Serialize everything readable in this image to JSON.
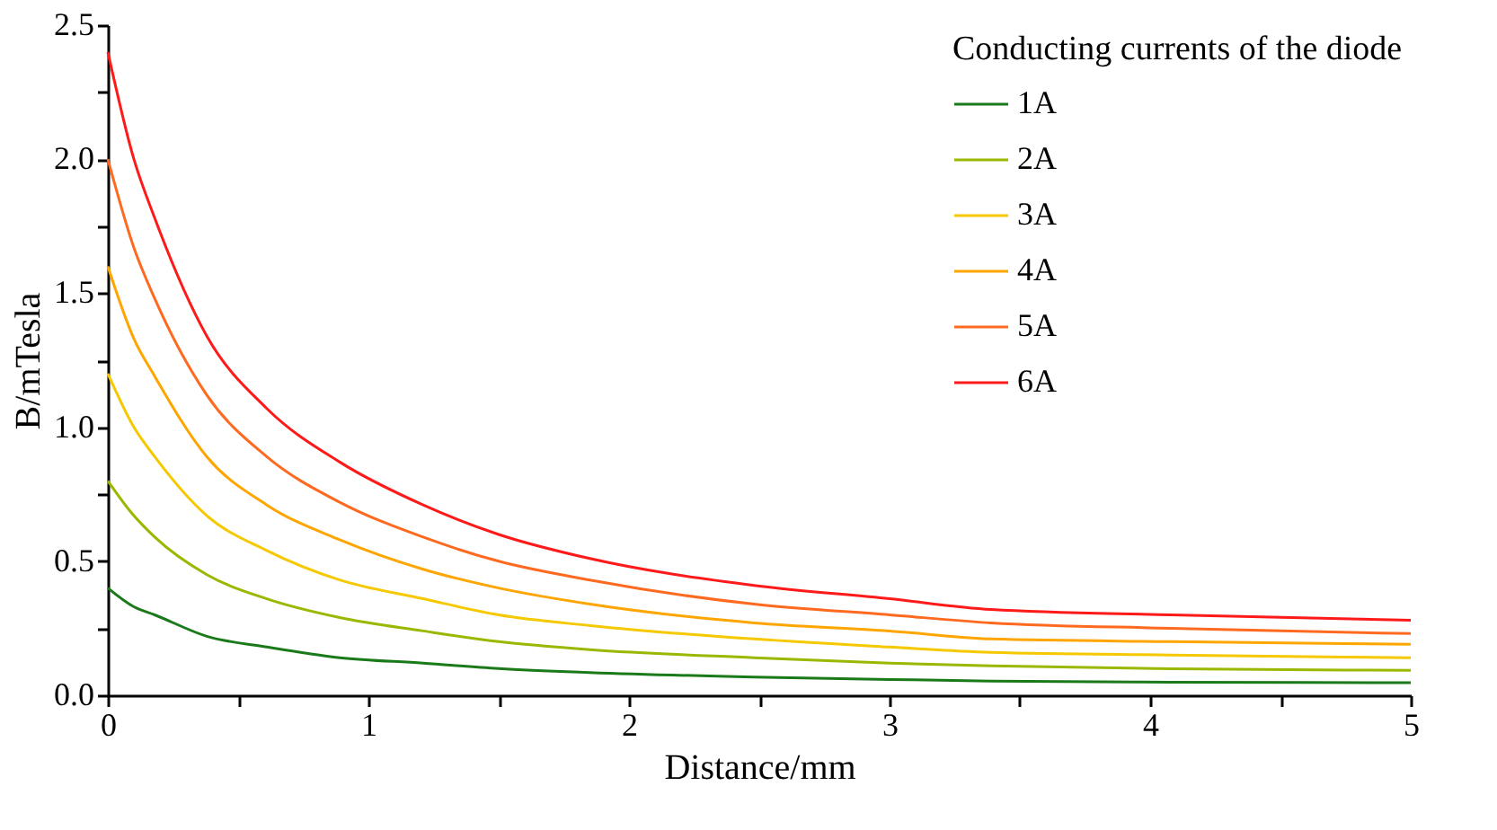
{
  "chart_data": {
    "type": "line",
    "xlabel": "Distance/mm",
    "ylabel": "B/mTesla",
    "legend_title": "Conducting currents of the diode",
    "legend": "top right",
    "grid": false,
    "line_style": "solid",
    "marker": "none",
    "x": [
      0,
      0.1,
      0.18,
      0.38,
      0.61,
      0.89,
      1.21,
      1.5,
      1.85,
      2.48,
      3.0,
      3.39,
      4.08,
      5.0
    ],
    "xlim": [
      0,
      5
    ],
    "xticks": [
      0,
      {
        "value": 0.5,
        "label": null
      },
      1,
      {
        "value": 1.5,
        "label": null
      },
      2,
      {
        "value": 2.5,
        "label": null
      },
      3,
      {
        "value": 3.5,
        "label": null
      },
      4,
      {
        "value": 4.5,
        "label": null
      },
      5
    ],
    "ylim": [
      0,
      2.5
    ],
    "yticks": [
      {
        "value": 0,
        "label": "0.0"
      },
      {
        "value": 0.25,
        "label": null
      },
      {
        "value": 0.5,
        "label": "0.5"
      },
      {
        "value": 0.75,
        "label": null
      },
      {
        "value": 1,
        "label": "1.0"
      },
      {
        "value": 1.25,
        "label": null
      },
      {
        "value": 1.5,
        "label": "1.5"
      },
      {
        "value": 1.75,
        "label": null
      },
      {
        "value": 2,
        "label": "2.0"
      },
      {
        "value": 2.25,
        "label": null
      },
      {
        "value": 2.5,
        "label": "2.5"
      }
    ],
    "series": [
      {
        "name": "1A",
        "color": "#1a7a1a",
        "values": [
          0.4,
          0.33,
          0.3,
          0.22,
          0.18,
          0.14,
          0.12,
          0.1,
          0.085,
          0.068,
          0.059,
          0.053,
          0.049,
          0.047
        ]
      },
      {
        "name": "2A",
        "color": "#9ab800",
        "values": [
          0.8,
          0.67,
          0.59,
          0.45,
          0.36,
          0.29,
          0.24,
          0.2,
          0.17,
          0.14,
          0.12,
          0.11,
          0.099,
          0.093
        ]
      },
      {
        "name": "3A",
        "color": "#f5c800",
        "values": [
          1.2,
          1.0,
          0.89,
          0.67,
          0.54,
          0.43,
          0.36,
          0.3,
          0.26,
          0.21,
          0.18,
          0.16,
          0.15,
          0.14
        ]
      },
      {
        "name": "4A",
        "color": "#ffa500",
        "values": [
          1.6,
          1.33,
          1.19,
          0.89,
          0.71,
          0.58,
          0.47,
          0.4,
          0.34,
          0.27,
          0.24,
          0.21,
          0.2,
          0.19
        ]
      },
      {
        "name": "5A",
        "color": "#ff6a20",
        "values": [
          2.0,
          1.67,
          1.48,
          1.12,
          0.89,
          0.72,
          0.59,
          0.5,
          0.43,
          0.34,
          0.3,
          0.27,
          0.25,
          0.23
        ]
      },
      {
        "name": "6A",
        "color": "#ff1a1a",
        "values": [
          2.4,
          2.0,
          1.78,
          1.34,
          1.07,
          0.87,
          0.71,
          0.6,
          0.51,
          0.41,
          0.36,
          0.32,
          0.3,
          0.28
        ]
      }
    ]
  }
}
